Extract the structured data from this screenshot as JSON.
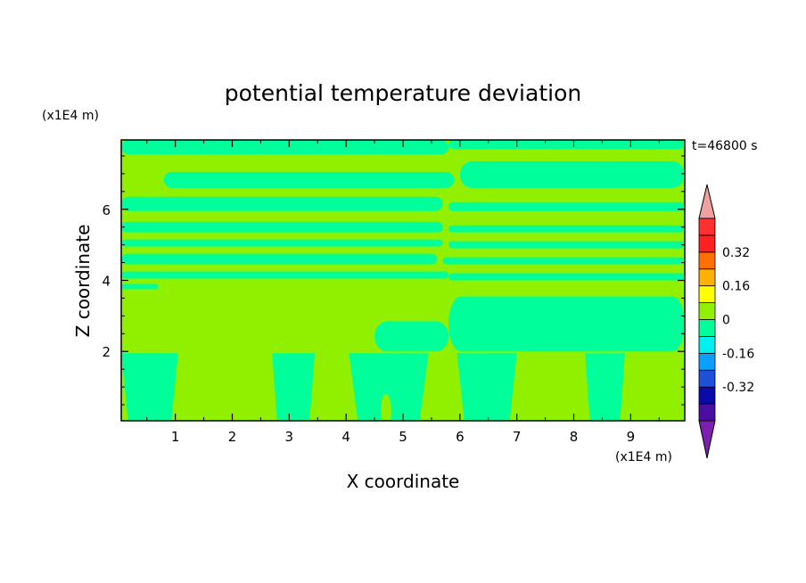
{
  "chart_data": {
    "type": "heatmap",
    "title": "potential temperature deviation",
    "time_label": "t=46800 s",
    "xlabel": "X coordinate",
    "ylabel": "Z coordinate",
    "x_unit": "(x1E4 m)",
    "y_unit": "(x1E4 m)",
    "xlim": [
      0.05,
      9.95
    ],
    "ylim": [
      0.05,
      7.95
    ],
    "x_ticks": [
      1,
      2,
      3,
      4,
      5,
      6,
      7,
      8,
      9
    ],
    "y_ticks": [
      2,
      4,
      6
    ],
    "colorbar": {
      "levels": [
        -0.48,
        -0.4,
        -0.32,
        -0.24,
        -0.16,
        -0.08,
        0,
        0.08,
        0.16,
        0.24,
        0.32,
        0.4,
        0.48
      ],
      "colors": [
        "#7a1fb0",
        "#4a0fa0",
        "#0a0aa8",
        "#1e50d8",
        "#0aa0ff",
        "#00f0f0",
        "#00ff9a",
        "#90f000",
        "#ffff00",
        "#ffb000",
        "#ff7000",
        "#ff2020",
        "#ff3030",
        "#f0a0a0"
      ],
      "tick_labels": [
        "0.32",
        "0.16",
        "0",
        "-0.16",
        "-0.32"
      ],
      "tick_values": [
        0.32,
        0.16,
        0,
        -0.16,
        -0.32
      ]
    },
    "field_colors": {
      "negative_small": "#00ff9a",
      "positive_small": "#90f000"
    },
    "horizontal_bands": [
      {
        "x0": 0.05,
        "x1": 5.8,
        "y0": 7.55,
        "y1": 7.95,
        "sign": "negative_small"
      },
      {
        "x0": 5.8,
        "x1": 9.95,
        "y0": 7.7,
        "y1": 7.95,
        "sign": "negative_small"
      },
      {
        "x0": 0.8,
        "x1": 5.9,
        "y0": 6.6,
        "y1": 7.05,
        "sign": "negative_small"
      },
      {
        "x0": 6.0,
        "x1": 9.95,
        "y0": 6.6,
        "y1": 7.35,
        "sign": "negative_small"
      },
      {
        "x0": 0.05,
        "x1": 5.7,
        "y0": 5.95,
        "y1": 6.35,
        "sign": "negative_small"
      },
      {
        "x0": 5.8,
        "x1": 9.95,
        "y0": 5.95,
        "y1": 6.2,
        "sign": "negative_small"
      },
      {
        "x0": 0.05,
        "x1": 5.7,
        "y0": 5.35,
        "y1": 5.65,
        "sign": "negative_small"
      },
      {
        "x0": 5.8,
        "x1": 9.95,
        "y0": 5.35,
        "y1": 5.55,
        "sign": "negative_small"
      },
      {
        "x0": 0.05,
        "x1": 5.7,
        "y0": 4.95,
        "y1": 5.15,
        "sign": "negative_small"
      },
      {
        "x0": 5.8,
        "x1": 9.95,
        "y0": 4.9,
        "y1": 5.1,
        "sign": "negative_small"
      },
      {
        "x0": 0.05,
        "x1": 5.6,
        "y0": 4.45,
        "y1": 4.75,
        "sign": "negative_small"
      },
      {
        "x0": 5.7,
        "x1": 9.95,
        "y0": 4.45,
        "y1": 4.65,
        "sign": "negative_small"
      },
      {
        "x0": 0.05,
        "x1": 5.8,
        "y0": 4.05,
        "y1": 4.25,
        "sign": "negative_small"
      },
      {
        "x0": 5.8,
        "x1": 9.95,
        "y0": 4.0,
        "y1": 4.2,
        "sign": "negative_small"
      },
      {
        "x0": 0.05,
        "x1": 0.7,
        "y0": 3.75,
        "y1": 3.9,
        "sign": "negative_small"
      },
      {
        "x0": 5.8,
        "x1": 9.95,
        "y0": 2.0,
        "y1": 3.55,
        "sign": "negative_small"
      },
      {
        "x0": 4.5,
        "x1": 5.8,
        "y0": 2.0,
        "y1": 2.85,
        "sign": "negative_small"
      }
    ],
    "columns": [
      {
        "x0": 0.05,
        "x1": 1.05,
        "sign": "negative_small"
      },
      {
        "x0": 2.7,
        "x1": 3.45,
        "sign": "negative_small"
      },
      {
        "x0": 4.05,
        "x1": 5.45,
        "sign": "negative_small"
      },
      {
        "x0": 5.95,
        "x1": 7.0,
        "sign": "negative_small"
      },
      {
        "x0": 8.2,
        "x1": 8.9,
        "sign": "negative_small"
      }
    ],
    "bubbles": [
      {
        "x": 1.1,
        "y": 0.35,
        "sign": "positive_small"
      },
      {
        "x": 1.65,
        "y": 0.5,
        "sign": "positive_small"
      },
      {
        "x": 2.25,
        "y": 0.55,
        "sign": "positive_small"
      },
      {
        "x": 2.6,
        "y": 0.3,
        "sign": "positive_small"
      },
      {
        "x": 4.7,
        "y": 0.75,
        "sign": "positive_small"
      },
      {
        "x": 7.35,
        "y": 0.5,
        "sign": "positive_small"
      },
      {
        "x": 7.8,
        "y": 0.45,
        "sign": "positive_small"
      },
      {
        "x": 8.05,
        "y": 0.35,
        "sign": "positive_small"
      }
    ]
  }
}
